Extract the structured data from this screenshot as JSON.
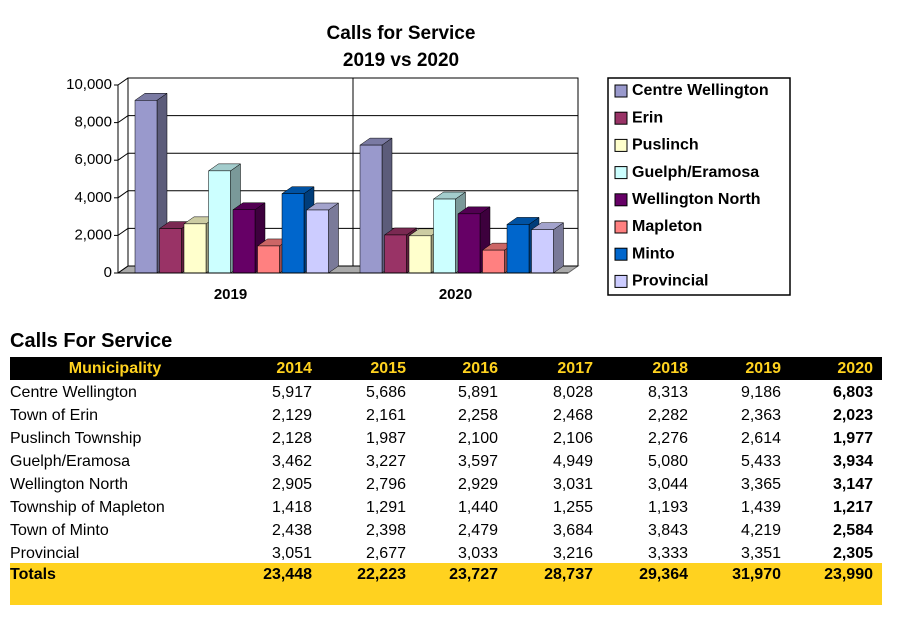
{
  "chart_data": {
    "type": "bar3d",
    "title": "Calls for Service",
    "subtitle": "2019 vs 2020",
    "categories": [
      "2019",
      "2020"
    ],
    "series": [
      {
        "name": "Centre Wellington",
        "color": "#9999cc",
        "values": [
          9186,
          6803
        ]
      },
      {
        "name": "Erin",
        "color": "#993366",
        "values": [
          2363,
          2023
        ]
      },
      {
        "name": "Puslinch",
        "color": "#ffffcc",
        "values": [
          2614,
          1977
        ]
      },
      {
        "name": "Guelph/Eramosa",
        "color": "#ccffff",
        "values": [
          5433,
          3934
        ]
      },
      {
        "name": "Wellington North",
        "color": "#660066",
        "values": [
          3365,
          3147
        ]
      },
      {
        "name": "Mapleton",
        "color": "#ff8080",
        "values": [
          1439,
          1217
        ]
      },
      {
        "name": "Minto",
        "color": "#0066cc",
        "values": [
          4219,
          2584
        ]
      },
      {
        "name": "Provincial",
        "color": "#ccccff",
        "values": [
          3351,
          2305
        ]
      }
    ],
    "ylim": [
      0,
      10000
    ],
    "yticks": [
      0,
      {
        "value": 2000,
        "label": "2,000"
      },
      {
        "value": 4000,
        "label": "4,000"
      },
      {
        "value": 6000,
        "label": "6,000"
      },
      {
        "value": 8000,
        "label": "8,000"
      },
      {
        "value": 10000,
        "label": "10,000"
      }
    ],
    "grid": true,
    "legend": "right"
  },
  "table": {
    "title": "Calls For Service",
    "header": [
      "Municipality",
      "2014",
      "2015",
      "2016",
      "2017",
      "2018",
      "2019",
      "2020"
    ],
    "rows": [
      [
        "Centre Wellington",
        "5,917",
        "5,686",
        "5,891",
        "8,028",
        "8,313",
        "9,186",
        "6,803"
      ],
      [
        "Town of Erin",
        "2,129",
        "2,161",
        "2,258",
        "2,468",
        "2,282",
        "2,363",
        "2,023"
      ],
      [
        "Puslinch Township",
        "2,128",
        "1,987",
        "2,100",
        "2,106",
        "2,276",
        "2,614",
        "1,977"
      ],
      [
        "Guelph/Eramosa",
        "3,462",
        "3,227",
        "3,597",
        "4,949",
        "5,080",
        "5,433",
        "3,934"
      ],
      [
        "Wellington North",
        "2,905",
        "2,796",
        "2,929",
        "3,031",
        "3,044",
        "3,365",
        "3,147"
      ],
      [
        "Township of Mapleton",
        "1,418",
        "1,291",
        "1,440",
        "1,255",
        "1,193",
        "1,439",
        "1,217"
      ],
      [
        "Town of Minto",
        "2,438",
        "2,398",
        "2,479",
        "3,684",
        "3,843",
        "4,219",
        "2,584"
      ],
      [
        "Provincial",
        "3,051",
        "2,677",
        "3,033",
        "3,216",
        "3,333",
        "3,351",
        "2,305"
      ]
    ],
    "totals": [
      "Totals",
      "23,448",
      "22,223",
      "23,727",
      "28,737",
      "29,364",
      "31,970",
      "23,990"
    ]
  }
}
